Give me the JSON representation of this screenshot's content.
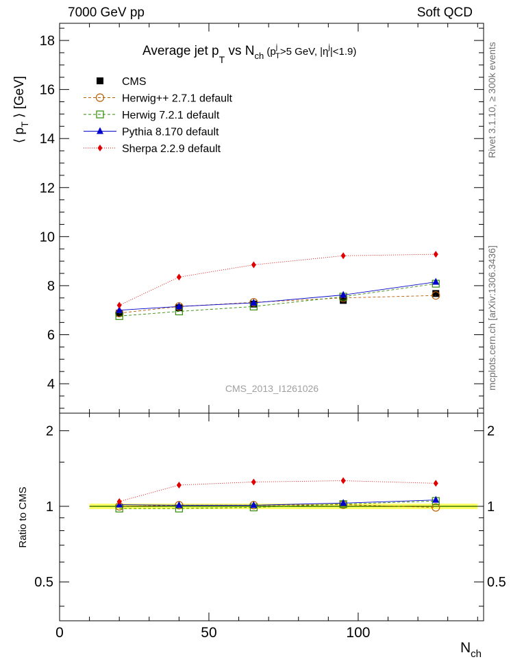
{
  "header": {
    "left": "7000 GeV pp",
    "right": "Soft QCD"
  },
  "side": {
    "rivet": "Rivet 3.1.10, ≥ 300k events",
    "mcplots": "mcplots.cern.ch [arXiv:1306.3436]"
  },
  "watermark": "CMS_2013_I1261026",
  "chart_data": {
    "type": "line",
    "title": "Average jet pT vs Nch (pT^j>5 GeV, |η^j|<1.9)",
    "x": [
      20,
      40,
      65,
      95,
      126
    ],
    "xlim": [
      0,
      142
    ],
    "xticks": [
      0,
      50,
      100
    ],
    "xlabel": "Nch",
    "top": {
      "ylabel": "⟨ pT ⟩ [GeV]",
      "ylim": [
        2.8,
        18.7
      ],
      "yticks": [
        4,
        6,
        8,
        10,
        12,
        14,
        16,
        18
      ],
      "series": [
        {
          "name": "CMS",
          "values": [
            6.88,
            7.1,
            7.25,
            7.4,
            7.68
          ],
          "errors": [
            0.06,
            0.06,
            0.06,
            0.08,
            0.1
          ]
        },
        {
          "name": "Herwig++ 2.7.1 default",
          "values": [
            6.88,
            7.15,
            7.32,
            7.5,
            7.6
          ]
        },
        {
          "name": "Herwig 7.2.1 default",
          "values": [
            6.76,
            6.95,
            7.15,
            7.55,
            8.08
          ]
        },
        {
          "name": "Pythia 8.170 default",
          "values": [
            7.0,
            7.15,
            7.3,
            7.62,
            8.15
          ]
        },
        {
          "name": "Sherpa 2.2.9 default",
          "values": [
            7.2,
            8.35,
            8.85,
            9.22,
            9.28
          ]
        }
      ]
    },
    "bottom": {
      "ylabel": "Ratio to CMS",
      "ylim": [
        0.35,
        2.35
      ],
      "yticks": [
        0.5,
        1,
        2
      ],
      "ytick_labels": [
        "0.5",
        "1",
        "2"
      ],
      "band": {
        "x": [
          10,
          140
        ],
        "half_width": 0.025
      },
      "series": [
        {
          "name": "CMS",
          "values": [
            1,
            1,
            1,
            1,
            1
          ]
        },
        {
          "name": "Herwig++ 2.7.1 default",
          "values": [
            1.0,
            1.01,
            1.01,
            1.015,
            0.99
          ]
        },
        {
          "name": "Herwig 7.2.1 default",
          "values": [
            0.98,
            0.98,
            0.99,
            1.02,
            1.05
          ]
        },
        {
          "name": "Pythia 8.170 default",
          "values": [
            1.015,
            1.01,
            1.01,
            1.03,
            1.06
          ]
        },
        {
          "name": "Sherpa 2.2.9 default",
          "values": [
            1.045,
            1.215,
            1.25,
            1.265,
            1.235
          ]
        }
      ]
    }
  },
  "styles": {
    "CMS": {
      "color": "#000000",
      "marker": "square-filled",
      "dash": ""
    },
    "Herwig++ 2.7.1 default": {
      "color": "#b85c00",
      "marker": "circle-open",
      "dash": "4,3"
    },
    "Herwig 7.2.1 default": {
      "color": "#2e8a00",
      "marker": "square-open",
      "dash": "4,3"
    },
    "Pythia 8.170 default": {
      "color": "#0000cc",
      "marker": "triangle-filled",
      "dash": ""
    },
    "Sherpa 2.2.9 default": {
      "color": "#e00000",
      "marker": "diamond-filled",
      "dash": "1,2"
    },
    "band_fill": "#ffff66",
    "band_edge": "#66cc00"
  }
}
